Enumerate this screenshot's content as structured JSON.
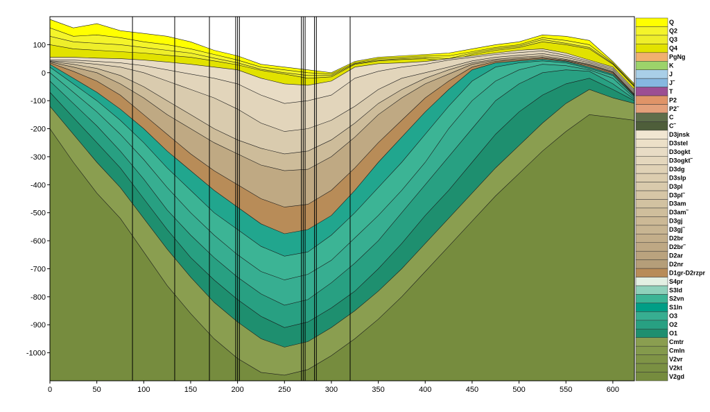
{
  "chart_data": {
    "type": "geological-cross-section",
    "title": "",
    "xlabel": "",
    "ylabel": "",
    "xlim": [
      0,
      623
    ],
    "ylim": [
      -1100,
      200
    ],
    "x_ticks": [
      0,
      50,
      100,
      150,
      200,
      250,
      300,
      350,
      400,
      450,
      500,
      550,
      600
    ],
    "y_ticks": [
      100,
      0,
      -100,
      -200,
      -300,
      -400,
      -500,
      -600,
      -700,
      -800,
      -900,
      -1000
    ],
    "boreholes": [
      88,
      133,
      170,
      198,
      200,
      202,
      268,
      270,
      272,
      282,
      284,
      320
    ],
    "sample_x": [
      0,
      25,
      50,
      75,
      100,
      125,
      150,
      175,
      200,
      225,
      250,
      275,
      300,
      325,
      350,
      375,
      400,
      425,
      450,
      475,
      500,
      525,
      550,
      575,
      600,
      623
    ],
    "layers": [
      {
        "name": "Q",
        "color": "#ffff00",
        "top": [
          190,
          160,
          175,
          150,
          140,
          130,
          110,
          80,
          60,
          30,
          20,
          10,
          0,
          40,
          55,
          60,
          65,
          70,
          85,
          100,
          110,
          135,
          130,
          115,
          40,
          -40
        ]
      },
      {
        "name": "Q2",
        "color": "#f4f42a",
        "top": [
          160,
          130,
          135,
          125,
          110,
          100,
          85,
          65,
          45,
          20,
          10,
          0,
          -5,
          35,
          50,
          55,
          60,
          60,
          75,
          90,
          100,
          125,
          115,
          100,
          35,
          -45
        ]
      },
      {
        "name": "Q3",
        "color": "#eeee2a",
        "top": [
          130,
          110,
          105,
          100,
          90,
          80,
          70,
          52,
          35,
          12,
          0,
          -10,
          -10,
          32,
          45,
          50,
          55,
          50,
          70,
          85,
          95,
          118,
          105,
          90,
          32,
          -48
        ]
      },
      {
        "name": "Q4",
        "color": "#e2e200",
        "top": [
          100,
          85,
          80,
          75,
          70,
          62,
          55,
          42,
          28,
          8,
          -5,
          -20,
          -15,
          30,
          42,
          47,
          50,
          40,
          65,
          80,
          90,
          110,
          100,
          85,
          30,
          -50
        ]
      },
      {
        "name": "D3jnsk",
        "color": "#e8dcc5",
        "top": [
          55,
          55,
          52,
          50,
          45,
          38,
          30,
          20,
          10,
          -20,
          -40,
          -45,
          -30,
          20,
          32,
          35,
          40,
          50,
          60,
          70,
          80,
          85,
          70,
          45,
          20,
          -60
        ]
      },
      {
        "name": "D3stel",
        "color": "#e2d5bb",
        "top": [
          45,
          45,
          40,
          35,
          25,
          10,
          -5,
          -20,
          -40,
          -80,
          -110,
          -100,
          -80,
          -20,
          5,
          20,
          30,
          45,
          55,
          65,
          72,
          78,
          62,
          40,
          15,
          -65
        ]
      },
      {
        "name": "D3dg",
        "color": "#d9cbae",
        "top": [
          42,
          38,
          30,
          20,
          0,
          -30,
          -60,
          -90,
          -130,
          -180,
          -210,
          -200,
          -170,
          -120,
          -60,
          -20,
          0,
          20,
          42,
          55,
          62,
          68,
          55,
          35,
          10,
          -70
        ]
      },
      {
        "name": "D3am",
        "color": "#cdbc9a",
        "top": [
          40,
          30,
          15,
          -10,
          -50,
          -100,
          -150,
          -200,
          -240,
          -270,
          -290,
          -280,
          -240,
          -180,
          -110,
          -60,
          -20,
          10,
          35,
          48,
          55,
          60,
          48,
          30,
          5,
          -75
        ]
      },
      {
        "name": "D2br",
        "color": "#bfa983",
        "top": [
          38,
          20,
          0,
          -40,
          -90,
          -150,
          -200,
          -250,
          -290,
          -330,
          -350,
          -345,
          -300,
          -230,
          -150,
          -90,
          -40,
          -5,
          30,
          44,
          50,
          55,
          45,
          28,
          2,
          -78
        ]
      },
      {
        "name": "D1gr-D2rzpr",
        "color": "#b88c58",
        "top": [
          35,
          5,
          -30,
          -80,
          -150,
          -220,
          -290,
          -350,
          -400,
          -450,
          -480,
          -470,
          -420,
          -340,
          -250,
          -170,
          -90,
          -30,
          20,
          40,
          46,
          52,
          42,
          25,
          0,
          -80
        ]
      },
      {
        "name": "S1ln",
        "color": "#21a68e",
        "top": [
          30,
          -20,
          -70,
          -130,
          -200,
          -280,
          -350,
          -420,
          -480,
          -540,
          -575,
          -560,
          -510,
          -420,
          -320,
          -230,
          -140,
          -60,
          10,
          35,
          42,
          48,
          40,
          20,
          -5,
          -82
        ]
      },
      {
        "name": "S2vn",
        "color": "#3cb495",
        "top": [
          20,
          -40,
          -100,
          -170,
          -250,
          -340,
          -420,
          -500,
          -560,
          -620,
          -655,
          -640,
          -580,
          -500,
          -410,
          -320,
          -220,
          -120,
          -30,
          20,
          35,
          42,
          35,
          15,
          -10,
          -85
        ]
      },
      {
        "name": "O3",
        "color": "#37ae91",
        "top": [
          0,
          -70,
          -140,
          -220,
          -310,
          -410,
          -500,
          -580,
          -650,
          -710,
          -740,
          -720,
          -670,
          -590,
          -510,
          -420,
          -320,
          -200,
          -100,
          -30,
          10,
          30,
          25,
          10,
          -20,
          -90
        ]
      },
      {
        "name": "O2",
        "color": "#28a082",
        "top": [
          -30,
          -110,
          -190,
          -280,
          -380,
          -490,
          -580,
          -660,
          -730,
          -790,
          -830,
          -810,
          -750,
          -680,
          -600,
          -500,
          -400,
          -300,
          -200,
          -100,
          -40,
          0,
          10,
          5,
          -40,
          -95
        ]
      },
      {
        "name": "O1",
        "color": "#1e8f6f",
        "top": [
          -70,
          -160,
          -250,
          -340,
          -450,
          -560,
          -660,
          -740,
          -810,
          -870,
          -910,
          -890,
          -840,
          -780,
          -700,
          -610,
          -510,
          -420,
          -320,
          -220,
          -140,
          -80,
          -40,
          -20,
          -60,
          -100
        ]
      },
      {
        "name": "Cmtr",
        "color": "#8a9e50",
        "top": [
          -120,
          -220,
          -320,
          -410,
          -520,
          -630,
          -730,
          -820,
          -890,
          -950,
          -980,
          -960,
          -910,
          -850,
          -780,
          -700,
          -610,
          -520,
          -430,
          -340,
          -260,
          -180,
          -110,
          -60,
          -90,
          -110
        ]
      },
      {
        "name": "V2gd",
        "color": "#768c3e",
        "top": [
          -200,
          -320,
          -430,
          -520,
          -640,
          -760,
          -860,
          -950,
          -1020,
          -1070,
          -1080,
          -1060,
          -1010,
          -950,
          -880,
          -800,
          -710,
          -620,
          -530,
          -440,
          -360,
          -280,
          -210,
          -150,
          -160,
          -170
        ]
      }
    ],
    "legend": [
      {
        "label": "Q",
        "color": "#ffff00"
      },
      {
        "label": "Q2",
        "color": "#f4f42a"
      },
      {
        "label": "Q3",
        "color": "#eeee2a"
      },
      {
        "label": "Q4",
        "color": "#e2e200"
      },
      {
        "label": "PgNg",
        "color": "#f0b070"
      },
      {
        "label": "K",
        "color": "#9cd36a"
      },
      {
        "label": "J",
        "color": "#a9cfe8"
      },
      {
        "label": "J˜",
        "color": "#86b8e0"
      },
      {
        "label": "T",
        "color": "#9c4f93"
      },
      {
        "label": "P2",
        "color": "#e09468"
      },
      {
        "label": "P2˜",
        "color": "#e3a07a"
      },
      {
        "label": "C",
        "color": "#5e6e4a"
      },
      {
        "label": "C˜",
        "color": "#4e5e3a"
      },
      {
        "label": "D3jnsk",
        "color": "#f1e6d2"
      },
      {
        "label": "D3stel",
        "color": "#ece0c8"
      },
      {
        "label": "D3ogkt",
        "color": "#e8dcc5"
      },
      {
        "label": "D3ogkt˜",
        "color": "#e4d7bd"
      },
      {
        "label": "D3dg",
        "color": "#e0d2b6"
      },
      {
        "label": "D3slp",
        "color": "#dccdaf"
      },
      {
        "label": "D3pl",
        "color": "#d9caac"
      },
      {
        "label": "D3pl˜",
        "color": "#d6c6a6"
      },
      {
        "label": "D3am",
        "color": "#d2c2a1"
      },
      {
        "label": "D3am˜",
        "color": "#cfbe9c"
      },
      {
        "label": "D3gj",
        "color": "#ccb996"
      },
      {
        "label": "D3gj˜",
        "color": "#c8b592"
      },
      {
        "label": "D2br",
        "color": "#c3ae8a"
      },
      {
        "label": "D2br˜",
        "color": "#bea884"
      },
      {
        "label": "D2ar",
        "color": "#baa37e"
      },
      {
        "label": "D2nr",
        "color": "#b59e79"
      },
      {
        "label": "D1gr-D2rzpr",
        "color": "#b88c58"
      },
      {
        "label": "S4pr",
        "color": "#e3f0e3"
      },
      {
        "label": "S3ld",
        "color": "#8fd1bb"
      },
      {
        "label": "S2vn",
        "color": "#3cb495"
      },
      {
        "label": "S1ln",
        "color": "#009e86"
      },
      {
        "label": "O3",
        "color": "#37ae91"
      },
      {
        "label": "O2",
        "color": "#28a082"
      },
      {
        "label": "O1",
        "color": "#1e8f6f"
      },
      {
        "label": "Cmtr",
        "color": "#8a9e50"
      },
      {
        "label": "Cmln",
        "color": "#849a4c"
      },
      {
        "label": "V2vr",
        "color": "#7f9446"
      },
      {
        "label": "V2kt",
        "color": "#7a9042"
      },
      {
        "label": "V2gd",
        "color": "#768c3e"
      }
    ]
  }
}
